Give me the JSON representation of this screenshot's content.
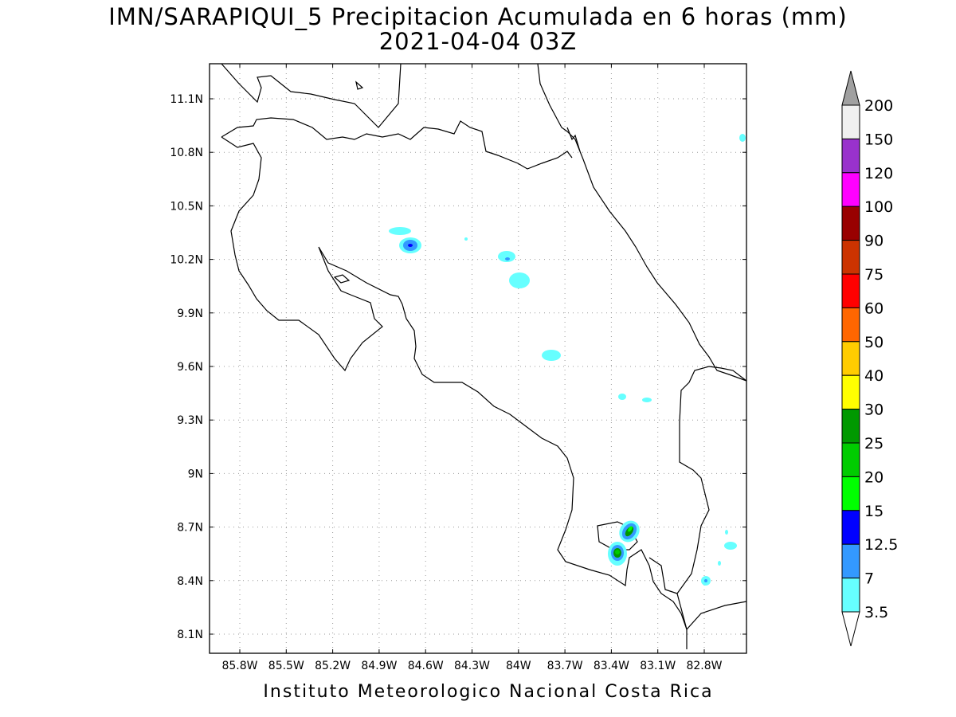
{
  "title": {
    "line1": "IMN/SARAPIQUI_5 Precipitacion Acumulada en 6 horas (mm)",
    "line2": "2021-04-04 03Z"
  },
  "footer": "Instituto Meteorologico Nacional Costa Rica",
  "map": {
    "lat_ticks": [
      "11.1N",
      "10.8N",
      "10.5N",
      "10.2N",
      "9.9N",
      "9.6N",
      "9.3N",
      "9N",
      "8.7N",
      "8.4N",
      "8.1N"
    ],
    "lon_ticks": [
      "85.8W",
      "85.5W",
      "85.2W",
      "84.9W",
      "84.6W",
      "84.3W",
      "84W",
      "83.7W",
      "83.4W",
      "83.1W",
      "82.8W"
    ],
    "grid": "dotted"
  },
  "colorbar": {
    "levels": [
      "200",
      "150",
      "120",
      "100",
      "90",
      "75",
      "60",
      "50",
      "40",
      "30",
      "25",
      "20",
      "15",
      "12.5",
      "7",
      "3.5"
    ],
    "colors": [
      "#f0f0f0",
      "#9932cc",
      "#ff00ff",
      "#990000",
      "#cc3300",
      "#ff0000",
      "#ff6600",
      "#ffcc00",
      "#ffff00",
      "#009900",
      "#00cc00",
      "#00ff00",
      "#0000ff",
      "#3399ff",
      "#66ffff"
    ],
    "over_color": "#a0a0a0",
    "under_color": "#ffffff"
  }
}
